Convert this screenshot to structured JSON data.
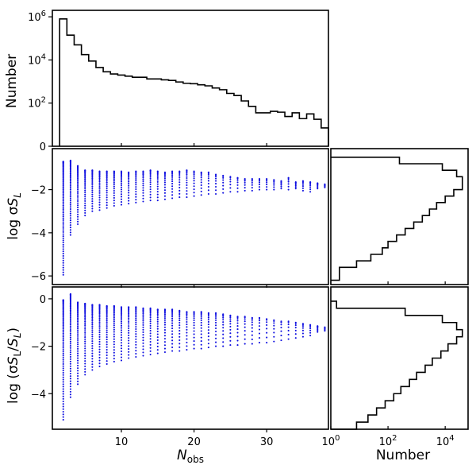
{
  "chart_data": [
    {
      "id": "top",
      "type": "histogram-step",
      "title": "",
      "xlabel": "",
      "ylabel": "Number",
      "yscale": "log",
      "xlim": [
        0.5,
        38.5
      ],
      "ylim_log10": [
        0,
        6.3
      ],
      "yticks": [
        {
          "e": 0,
          "label": "0"
        },
        {
          "e": 2,
          "label": "10",
          "exp": "2"
        },
        {
          "e": 4,
          "label": "10",
          "exp": "4"
        },
        {
          "e": 6,
          "label": "10",
          "exp": "6"
        }
      ],
      "bin_left_edges": [
        1.5,
        2.5,
        3.5,
        4.5,
        5.5,
        6.5,
        7.5,
        8.5,
        9.5,
        10.5,
        11.5,
        12.5,
        13.5,
        14.5,
        15.5,
        16.5,
        17.5,
        18.5,
        19.5,
        20.5,
        21.5,
        22.5,
        23.5,
        24.5,
        25.5,
        26.5,
        27.5,
        28.5,
        29.5,
        30.5,
        31.5,
        32.5,
        33.5,
        34.5,
        35.5,
        36.5,
        37.5
      ],
      "bin_width": 1,
      "log10_counts": [
        5.9,
        5.15,
        4.7,
        4.25,
        3.95,
        3.65,
        3.45,
        3.35,
        3.3,
        3.25,
        3.2,
        3.2,
        3.12,
        3.12,
        3.08,
        3.05,
        2.98,
        2.92,
        2.9,
        2.85,
        2.8,
        2.7,
        2.62,
        2.45,
        2.35,
        2.1,
        1.85,
        1.55,
        1.55,
        1.62,
        1.58,
        1.38,
        1.55,
        1.28,
        1.5,
        1.25,
        0.85
      ]
    },
    {
      "id": "mid",
      "type": "scatter",
      "xlabel": "",
      "ylabel": "log σS_L",
      "xlim": [
        0.5,
        38.5
      ],
      "ylim": [
        -6.4,
        -0.1
      ],
      "yticks": [
        -6,
        -4,
        -2
      ],
      "color": "#1010e0",
      "columns": [
        {
          "x": 2,
          "ymin": -5.95,
          "ymax": -0.7
        },
        {
          "x": 3,
          "ymin": -4.1,
          "ymax": -0.65
        },
        {
          "x": 4,
          "ymin": -3.6,
          "ymax": -0.9
        },
        {
          "x": 5,
          "ymin": -3.2,
          "ymax": -1.1
        },
        {
          "x": 6,
          "ymin": -3.0,
          "ymax": -1.1
        },
        {
          "x": 7,
          "ymin": -2.95,
          "ymax": -1.15
        },
        {
          "x": 8,
          "ymin": -2.85,
          "ymax": -1.15
        },
        {
          "x": 9,
          "ymin": -2.75,
          "ymax": -1.15
        },
        {
          "x": 10,
          "ymin": -2.7,
          "ymax": -1.15
        },
        {
          "x": 11,
          "ymin": -2.65,
          "ymax": -1.2
        },
        {
          "x": 12,
          "ymin": -2.6,
          "ymax": -1.15
        },
        {
          "x": 13,
          "ymin": -2.55,
          "ymax": -1.15
        },
        {
          "x": 14,
          "ymin": -2.5,
          "ymax": -1.1
        },
        {
          "x": 15,
          "ymin": -2.5,
          "ymax": -1.15
        },
        {
          "x": 16,
          "ymin": -2.45,
          "ymax": -1.2
        },
        {
          "x": 17,
          "ymin": -2.4,
          "ymax": -1.15
        },
        {
          "x": 18,
          "ymin": -2.35,
          "ymax": -1.15
        },
        {
          "x": 19,
          "ymin": -2.35,
          "ymax": -1.1
        },
        {
          "x": 20,
          "ymin": -2.3,
          "ymax": -1.15
        },
        {
          "x": 21,
          "ymin": -2.25,
          "ymax": -1.2
        },
        {
          "x": 22,
          "ymin": -2.2,
          "ymax": -1.2
        },
        {
          "x": 23,
          "ymin": -2.2,
          "ymax": -1.3
        },
        {
          "x": 24,
          "ymin": -2.15,
          "ymax": -1.35
        },
        {
          "x": 25,
          "ymin": -2.1,
          "ymax": -1.4
        },
        {
          "x": 26,
          "ymin": -2.1,
          "ymax": -1.45
        },
        {
          "x": 27,
          "ymin": -2.05,
          "ymax": -1.5
        },
        {
          "x": 28,
          "ymin": -2.05,
          "ymax": -1.5
        },
        {
          "x": 29,
          "ymin": -2.0,
          "ymax": -1.5
        },
        {
          "x": 30,
          "ymin": -2.0,
          "ymax": -1.5
        },
        {
          "x": 31,
          "ymin": -2.0,
          "ymax": -1.55
        },
        {
          "x": 32,
          "ymin": -1.95,
          "ymax": -1.6
        },
        {
          "x": 33,
          "ymin": -2.0,
          "ymax": -1.45
        },
        {
          "x": 34,
          "ymin": -1.95,
          "ymax": -1.65
        },
        {
          "x": 35,
          "ymin": -2.05,
          "ymax": -1.6
        },
        {
          "x": 36,
          "ymin": -2.1,
          "ymax": -1.65
        },
        {
          "x": 37,
          "ymin": -1.95,
          "ymax": -1.7
        },
        {
          "x": 38,
          "ymin": -1.9,
          "ymax": -1.75
        }
      ]
    },
    {
      "id": "bot",
      "type": "scatter",
      "xlabel": "N_obs",
      "ylabel": "log (σS_L/S_L)",
      "xlim": [
        0.5,
        38.5
      ],
      "ylim": [
        -5.5,
        0.5
      ],
      "yticks": [
        -4,
        -2,
        0
      ],
      "xticks": [
        {
          "v": 10,
          "label": "10"
        },
        {
          "v": 20,
          "label": "20"
        },
        {
          "v": 30,
          "label": "30"
        }
      ],
      "color": "#1010e0",
      "columns": [
        {
          "x": 2,
          "ymin": -5.1,
          "ymax": -0.05
        },
        {
          "x": 3,
          "ymin": -4.15,
          "ymax": 0.2
        },
        {
          "x": 4,
          "ymin": -3.6,
          "ymax": -0.15
        },
        {
          "x": 5,
          "ymin": -3.2,
          "ymax": -0.2
        },
        {
          "x": 6,
          "ymin": -3.0,
          "ymax": -0.25
        },
        {
          "x": 7,
          "ymin": -2.85,
          "ymax": -0.25
        },
        {
          "x": 8,
          "ymin": -2.75,
          "ymax": -0.3
        },
        {
          "x": 9,
          "ymin": -2.65,
          "ymax": -0.3
        },
        {
          "x": 10,
          "ymin": -2.6,
          "ymax": -0.35
        },
        {
          "x": 11,
          "ymin": -2.5,
          "ymax": -0.35
        },
        {
          "x": 12,
          "ymin": -2.45,
          "ymax": -0.35
        },
        {
          "x": 13,
          "ymin": -2.4,
          "ymax": -0.4
        },
        {
          "x": 14,
          "ymin": -2.35,
          "ymax": -0.4
        },
        {
          "x": 15,
          "ymin": -2.3,
          "ymax": -0.45
        },
        {
          "x": 16,
          "ymin": -2.25,
          "ymax": -0.45
        },
        {
          "x": 17,
          "ymin": -2.2,
          "ymax": -0.45
        },
        {
          "x": 18,
          "ymin": -2.2,
          "ymax": -0.5
        },
        {
          "x": 19,
          "ymin": -2.15,
          "ymax": -0.55
        },
        {
          "x": 20,
          "ymin": -2.1,
          "ymax": -0.55
        },
        {
          "x": 21,
          "ymin": -2.1,
          "ymax": -0.55
        },
        {
          "x": 22,
          "ymin": -2.05,
          "ymax": -0.6
        },
        {
          "x": 23,
          "ymin": -2.0,
          "ymax": -0.6
        },
        {
          "x": 24,
          "ymin": -2.0,
          "ymax": -0.65
        },
        {
          "x": 25,
          "ymin": -1.95,
          "ymax": -0.7
        },
        {
          "x": 26,
          "ymin": -1.95,
          "ymax": -0.75
        },
        {
          "x": 27,
          "ymin": -1.9,
          "ymax": -0.75
        },
        {
          "x": 28,
          "ymin": -1.9,
          "ymax": -0.8
        },
        {
          "x": 29,
          "ymin": -1.85,
          "ymax": -0.8
        },
        {
          "x": 30,
          "ymin": -1.85,
          "ymax": -0.85
        },
        {
          "x": 31,
          "ymin": -1.8,
          "ymax": -0.9
        },
        {
          "x": 32,
          "ymin": -1.75,
          "ymax": -0.95
        },
        {
          "x": 33,
          "ymin": -1.7,
          "ymax": -0.95
        },
        {
          "x": 34,
          "ymin": -1.65,
          "ymax": -1.0
        },
        {
          "x": 35,
          "ymin": -1.6,
          "ymax": -1.05
        },
        {
          "x": 36,
          "ymin": -1.55,
          "ymax": -1.1
        },
        {
          "x": 37,
          "ymin": -1.4,
          "ymax": -1.15
        },
        {
          "x": 38,
          "ymin": -1.35,
          "ymax": -1.2
        }
      ]
    },
    {
      "id": "rmid",
      "type": "histogram-step-horizontal",
      "xlabel": "",
      "xscale": "log",
      "xlim_log10": [
        0,
        4.8
      ],
      "ylim": [
        -6.4,
        -0.1
      ],
      "bin_edges": [
        -6.2,
        -5.9,
        -5.6,
        -5.3,
        -5.0,
        -4.7,
        -4.4,
        -4.1,
        -3.8,
        -3.5,
        -3.2,
        -2.9,
        -2.6,
        -2.3,
        -2.0,
        -1.7,
        -1.4,
        -1.1,
        -0.8,
        -0.5
      ],
      "log10_counts": [
        0.3,
        0.3,
        0.9,
        1.4,
        1.8,
        2.0,
        2.3,
        2.6,
        2.9,
        3.2,
        3.45,
        3.7,
        4.0,
        4.3,
        4.6,
        4.6,
        4.4,
        3.9,
        2.4
      ]
    },
    {
      "id": "rbot",
      "type": "histogram-step-horizontal",
      "xlabel": "Number",
      "xscale": "log",
      "xlim_log10": [
        0,
        4.8
      ],
      "ylim": [
        -5.5,
        0.5
      ],
      "xticks": [
        {
          "e": 0,
          "label": "10",
          "exp": "0"
        },
        {
          "e": 2,
          "label": "10",
          "exp": "2"
        },
        {
          "e": 4,
          "label": "10",
          "exp": "4"
        }
      ],
      "bin_edges": [
        -5.5,
        -5.2,
        -4.9,
        -4.6,
        -4.3,
        -4.0,
        -3.7,
        -3.4,
        -3.1,
        -2.8,
        -2.5,
        -2.2,
        -1.9,
        -1.6,
        -1.3,
        -1.0,
        -0.7,
        -0.4,
        -0.1
      ],
      "log10_counts": [
        0.9,
        1.3,
        1.6,
        1.9,
        2.2,
        2.45,
        2.75,
        3.0,
        3.3,
        3.55,
        3.85,
        4.1,
        4.4,
        4.6,
        4.4,
        3.9,
        2.6,
        0.2
      ]
    }
  ]
}
